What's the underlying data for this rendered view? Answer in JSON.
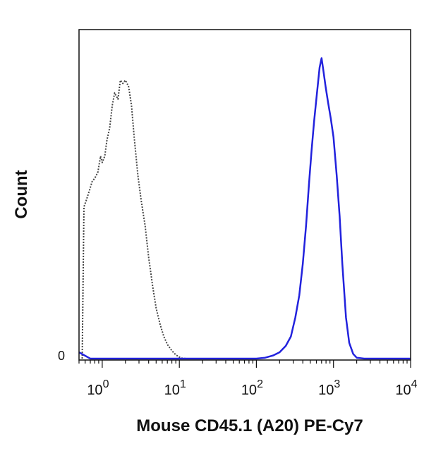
{
  "chart_data": {
    "type": "line",
    "title": "",
    "xlabel": "Mouse CD45.1 (A20) PE-Cy7",
    "ylabel": "Count",
    "x_scale": "log",
    "xlim": [
      0.5,
      10000
    ],
    "ylim": [
      0,
      100
    ],
    "grid": false,
    "x_ticks": [
      {
        "base": "10",
        "exp": "0",
        "value": 1
      },
      {
        "base": "10",
        "exp": "1",
        "value": 10
      },
      {
        "base": "10",
        "exp": "2",
        "value": 100
      },
      {
        "base": "10",
        "exp": "3",
        "value": 1000
      },
      {
        "base": "10",
        "exp": "4",
        "value": 10000
      }
    ],
    "y_ticks": [
      {
        "label": "0",
        "value": 0
      }
    ],
    "series": [
      {
        "style": "dotted",
        "color": "#444444",
        "x": [
          0.55,
          0.58,
          0.62,
          0.68,
          0.74,
          0.8,
          0.88,
          0.95,
          1.0,
          1.08,
          1.15,
          1.25,
          1.35,
          1.45,
          1.6,
          1.72,
          1.85,
          2.0,
          2.2,
          2.4,
          2.6,
          2.9,
          3.2,
          3.6,
          4.0,
          4.5,
          5.0,
          5.6,
          6.3,
          7.0,
          8.0,
          9.0,
          10.0,
          11.0,
          12.5
        ],
        "y": [
          0,
          48,
          50,
          53,
          56,
          57,
          59,
          64,
          62,
          64,
          69,
          73,
          80,
          84,
          82,
          88,
          87,
          88,
          86,
          80,
          70,
          58,
          50,
          42,
          32,
          23,
          16,
          11,
          7,
          4.5,
          2.5,
          1.2,
          0.5,
          0.1,
          0
        ]
      },
      {
        "style": "solid",
        "color": "#2222dd",
        "x": [
          0.5,
          0.7,
          1.0,
          10.0,
          100,
          130,
          165,
          200,
          240,
          280,
          320,
          360,
          400,
          440,
          480,
          520,
          560,
          610,
          660,
          700,
          740,
          790,
          850,
          920,
          1000,
          1100,
          1200,
          1300,
          1450,
          1600,
          1800,
          2000,
          2500,
          5000,
          10000
        ],
        "y": [
          2,
          0,
          0,
          0,
          0,
          0.3,
          1,
          2,
          4,
          7,
          13,
          20,
          30,
          42,
          55,
          66,
          75,
          84,
          92,
          95,
          91,
          86,
          81,
          76,
          70,
          58,
          45,
          30,
          13,
          5,
          1.5,
          0.3,
          0,
          0,
          0
        ]
      }
    ]
  }
}
